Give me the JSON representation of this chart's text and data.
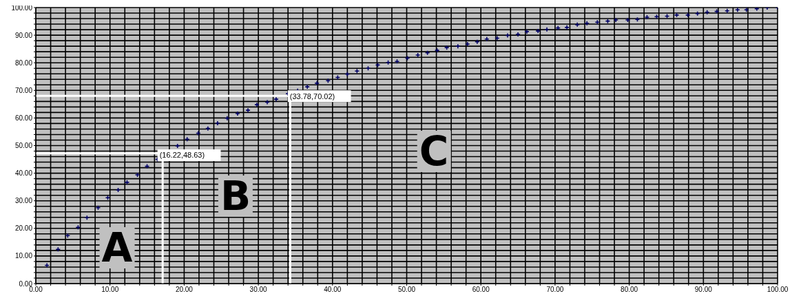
{
  "chart_data": {
    "type": "scatter",
    "marker": "cross",
    "grid": true,
    "xlim": [
      0,
      100
    ],
    "ylim": [
      0,
      100
    ],
    "xticks": [
      {
        "value": 0,
        "label": "0.00"
      },
      {
        "value": 2,
        "label": null
      },
      {
        "value": 4,
        "label": null
      },
      {
        "value": 6,
        "label": null
      },
      {
        "value": 8,
        "label": null
      },
      {
        "value": 10,
        "label": "10.00"
      },
      {
        "value": 12,
        "label": null
      },
      {
        "value": 14,
        "label": null
      },
      {
        "value": 16,
        "label": null
      },
      {
        "value": 18,
        "label": null
      },
      {
        "value": 20,
        "label": "20.00"
      },
      {
        "value": 22,
        "label": null
      },
      {
        "value": 24,
        "label": null
      },
      {
        "value": 26,
        "label": null
      },
      {
        "value": 28,
        "label": null
      },
      {
        "value": 30,
        "label": "30.00"
      },
      {
        "value": 32,
        "label": null
      },
      {
        "value": 34,
        "label": null
      },
      {
        "value": 36,
        "label": null
      },
      {
        "value": 38,
        "label": null
      },
      {
        "value": 40,
        "label": "40.00"
      },
      {
        "value": 42,
        "label": null
      },
      {
        "value": 44,
        "label": null
      },
      {
        "value": 46,
        "label": null
      },
      {
        "value": 48,
        "label": null
      },
      {
        "value": 50,
        "label": "50.00"
      },
      {
        "value": 52,
        "label": null
      },
      {
        "value": 54,
        "label": null
      },
      {
        "value": 56,
        "label": null
      },
      {
        "value": 58,
        "label": null
      },
      {
        "value": 60,
        "label": "60.00"
      },
      {
        "value": 62,
        "label": null
      },
      {
        "value": 64,
        "label": null
      },
      {
        "value": 66,
        "label": null
      },
      {
        "value": 68,
        "label": null
      },
      {
        "value": 70,
        "label": "70.00"
      },
      {
        "value": 72,
        "label": null
      },
      {
        "value": 74,
        "label": null
      },
      {
        "value": 76,
        "label": null
      },
      {
        "value": 78,
        "label": null
      },
      {
        "value": 80,
        "label": "80.00"
      },
      {
        "value": 82,
        "label": null
      },
      {
        "value": 84,
        "label": null
      },
      {
        "value": 86,
        "label": null
      },
      {
        "value": 88,
        "label": null
      },
      {
        "value": 90,
        "label": "90.00"
      },
      {
        "value": 92,
        "label": null
      },
      {
        "value": 94,
        "label": null
      },
      {
        "value": 96,
        "label": null
      },
      {
        "value": 98,
        "label": null
      },
      {
        "value": 100,
        "label": "100.00"
      }
    ],
    "yticks": [
      {
        "value": 0,
        "label": "0.00"
      },
      {
        "value": 2,
        "label": null
      },
      {
        "value": 4,
        "label": null
      },
      {
        "value": 6,
        "label": null
      },
      {
        "value": 8,
        "label": null
      },
      {
        "value": 10,
        "label": "10.00"
      },
      {
        "value": 12,
        "label": null
      },
      {
        "value": 14,
        "label": null
      },
      {
        "value": 16,
        "label": null
      },
      {
        "value": 18,
        "label": null
      },
      {
        "value": 20,
        "label": "20.00"
      },
      {
        "value": 22,
        "label": null
      },
      {
        "value": 24,
        "label": null
      },
      {
        "value": 26,
        "label": null
      },
      {
        "value": 28,
        "label": null
      },
      {
        "value": 30,
        "label": "30.00"
      },
      {
        "value": 32,
        "label": null
      },
      {
        "value": 34,
        "label": null
      },
      {
        "value": 36,
        "label": null
      },
      {
        "value": 38,
        "label": null
      },
      {
        "value": 40,
        "label": "40.00"
      },
      {
        "value": 42,
        "label": null
      },
      {
        "value": 44,
        "label": null
      },
      {
        "value": 46,
        "label": null
      },
      {
        "value": 48,
        "label": null
      },
      {
        "value": 50,
        "label": "50.00"
      },
      {
        "value": 52,
        "label": null
      },
      {
        "value": 54,
        "label": null
      },
      {
        "value": 56,
        "label": null
      },
      {
        "value": 58,
        "label": null
      },
      {
        "value": 60,
        "label": "60.00"
      },
      {
        "value": 62,
        "label": null
      },
      {
        "value": 64,
        "label": null
      },
      {
        "value": 66,
        "label": null
      },
      {
        "value": 68,
        "label": null
      },
      {
        "value": 70,
        "label": "70.00"
      },
      {
        "value": 72,
        "label": null
      },
      {
        "value": 74,
        "label": null
      },
      {
        "value": 76,
        "label": null
      },
      {
        "value": 78,
        "label": null
      },
      {
        "value": 80,
        "label": "80.00"
      },
      {
        "value": 82,
        "label": null
      },
      {
        "value": 84,
        "label": null
      },
      {
        "value": 86,
        "label": null
      },
      {
        "value": 88,
        "label": null
      },
      {
        "value": 90,
        "label": "90.00"
      },
      {
        "value": 92,
        "label": null
      },
      {
        "value": 94,
        "label": null
      },
      {
        "value": 96,
        "label": null
      },
      {
        "value": 98,
        "label": null
      },
      {
        "value": 100,
        "label": "100.00"
      }
    ],
    "series": [
      {
        "color": "#000066",
        "x": [
          1.5,
          3.0,
          4.3,
          5.7,
          6.9,
          8.4,
          9.7,
          11.1,
          12.3,
          13.7,
          15.0,
          16.4,
          19.1,
          20.4,
          21.9,
          23.2,
          24.5,
          25.8,
          27.2,
          28.6,
          29.8,
          31.2,
          32.4,
          34.0,
          35.3,
          36.6,
          37.9,
          39.4,
          40.7,
          42.0,
          43.3,
          44.8,
          46.1,
          47.5,
          48.7,
          50.1,
          51.5,
          52.8,
          54.1,
          55.4,
          56.9,
          58.2,
          59.5,
          60.8,
          62.2,
          63.6,
          65.0,
          66.2,
          67.7,
          68.9,
          70.4,
          71.6,
          73.0,
          74.3,
          75.7,
          77.1,
          78.2,
          79.8,
          81.1,
          82.4,
          83.7,
          85.1,
          86.4,
          87.9,
          89.2,
          90.5,
          91.8,
          93.2,
          94.6,
          95.8,
          97.2,
          98.6,
          100
        ],
        "values": [
          6.6,
          12.4,
          17.4,
          20.4,
          23.9,
          27.5,
          31.1,
          33.9,
          36.7,
          39.4,
          42.5,
          45.0,
          49.9,
          52.3,
          54.5,
          56.2,
          58.1,
          59.9,
          61.6,
          62.8,
          64.8,
          65.7,
          66.8,
          68.8,
          69.9,
          71.3,
          72.6,
          73.5,
          74.7,
          75.9,
          77.0,
          78.0,
          79.2,
          80.1,
          80.5,
          81.7,
          82.8,
          83.6,
          84.5,
          85.5,
          86.0,
          86.8,
          87.6,
          88.6,
          88.9,
          89.9,
          90.3,
          91.3,
          91.5,
          92.1,
          92.6,
          92.8,
          93.8,
          94.3,
          94.7,
          95.1,
          95.5,
          95.5,
          95.7,
          96.5,
          96.7,
          96.9,
          97.3,
          97.3,
          97.8,
          98.3,
          98.6,
          98.8,
          99.2,
          99.2,
          99.6,
          100,
          100
        ]
      }
    ],
    "ref_lines": [
      {
        "axis": "x",
        "value": 17.1,
        "color": "#ffffff"
      },
      {
        "axis": "y",
        "value": 47.2,
        "color": "#ffffff"
      },
      {
        "axis": "x",
        "value": 34.3,
        "color": "#ffffff"
      },
      {
        "axis": "y",
        "value": 68.0,
        "color": "#ffffff"
      }
    ],
    "annotations": [
      {
        "text": "(16.22,48.63)",
        "x": 16.22,
        "y": 48.63
      },
      {
        "text": "(33.78,70.02)",
        "x": 33.78,
        "y": 70.02
      },
      "A",
      "B",
      "C"
    ]
  }
}
